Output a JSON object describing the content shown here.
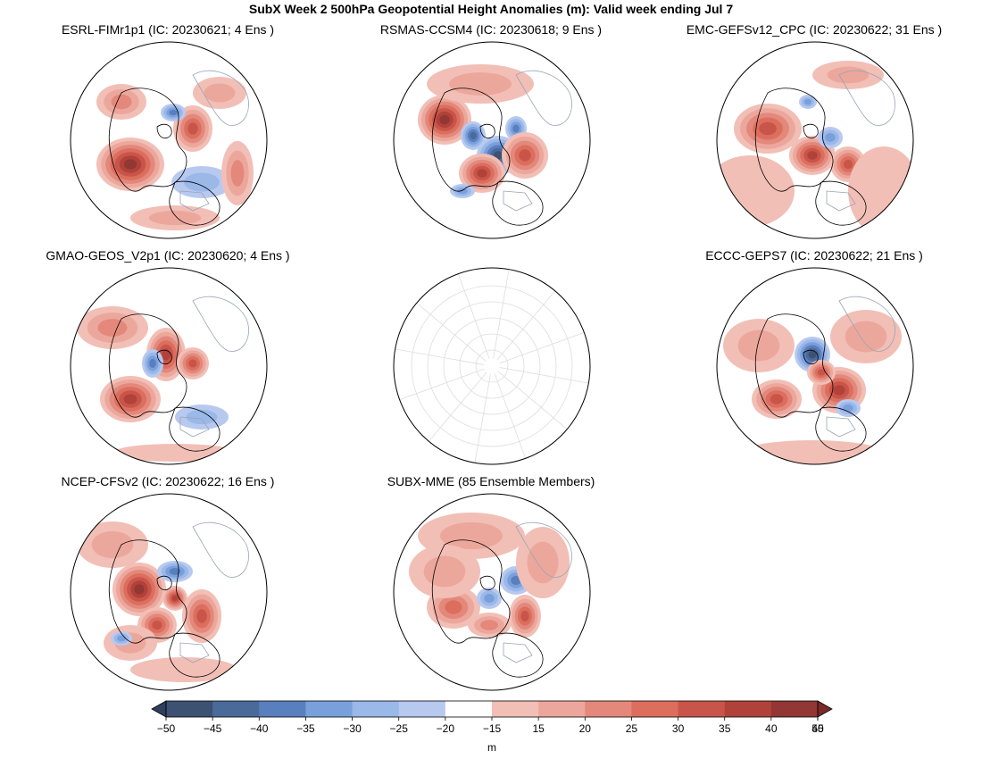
{
  "figure": {
    "title": "SubX Week 2 500hPa Geopotential Height Anomalies (m): Valid week ending Jul 7"
  },
  "panels": [
    {
      "title": "ESRL-FIMr1p1 (IC: 20230621; 4 Ens )",
      "has_data": true
    },
    {
      "title": "RSMAS-CCSM4 (IC: 20230618; 9 Ens )",
      "has_data": true
    },
    {
      "title": "EMC-GEFSv12_CPC (IC: 20230622; 31 Ens )",
      "has_data": true
    },
    {
      "title": "GMAO-GEOS_V2p1 (IC: 20230620; 4 Ens )",
      "has_data": true
    },
    {
      "title": "",
      "has_data": false
    },
    {
      "title": "ECCC-GEPS7 (IC: 20230622; 21 Ens )",
      "has_data": true
    },
    {
      "title": "NCEP-CFSv2 (IC: 20230622; 16 Ens )",
      "has_data": true
    },
    {
      "title": "SUBX-MME (85 Ensemble Members)",
      "has_data": true
    }
  ],
  "colorbar": {
    "label": "m",
    "ticks": [
      "−50",
      "−45",
      "−40",
      "−35",
      "−30",
      "−25",
      "−20",
      "−15",
      "15",
      "20",
      "25",
      "30",
      "35",
      "40",
      "45",
      "50"
    ],
    "colors": [
      "#3d5273",
      "#4a6a9a",
      "#5a7fbf",
      "#7aa0dc",
      "#9ab8e8",
      "#b8c9f0",
      "#ffffff",
      "#f2bfb6",
      "#eca79c",
      "#e3887b",
      "#dc6e5e",
      "#c9554a",
      "#b1423a",
      "#923733"
    ],
    "under_color": "#2f3f5c",
    "over_color": "#7a2a28"
  }
}
